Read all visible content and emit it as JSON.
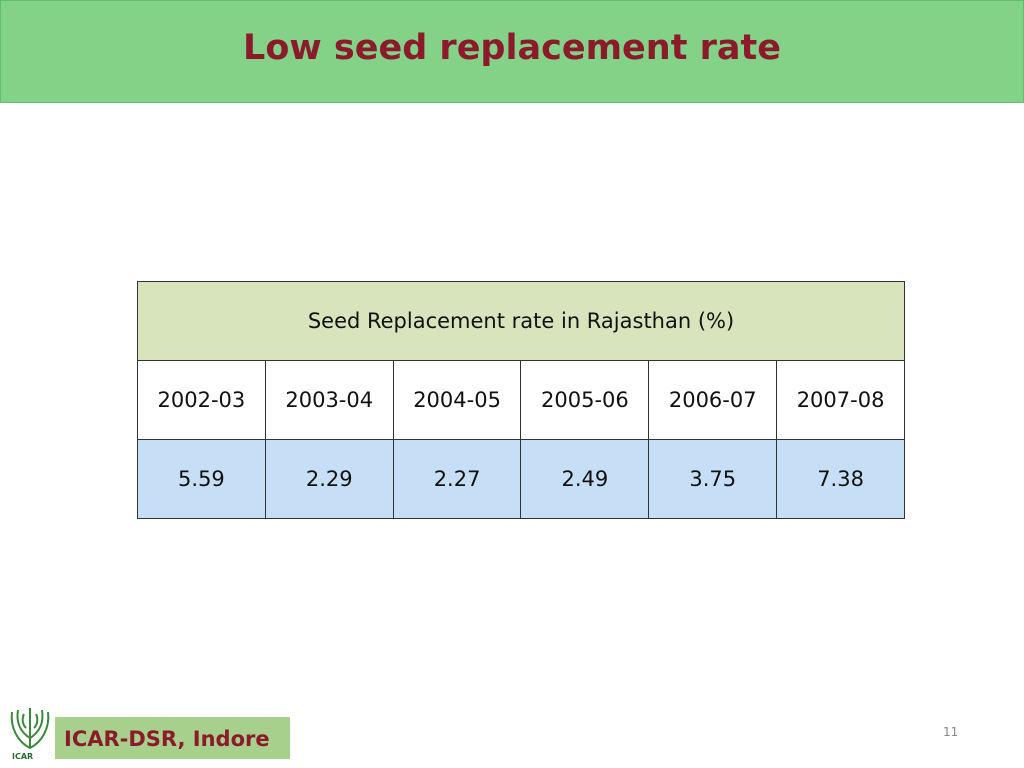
{
  "header": {
    "title": "Low seed replacement rate"
  },
  "table": {
    "caption": "Seed Replacement rate in Rajasthan (%)",
    "columns": [
      "2002-03",
      "2003-04",
      "2004-05",
      "2005-06",
      "2006-07",
      "2007-08"
    ],
    "rows": [
      [
        5.59,
        2.29,
        2.27,
        2.49,
        3.75,
        7.38
      ]
    ]
  },
  "footer": {
    "logo_text": "ICAR",
    "organization": "ICAR-DSR, Indore",
    "page_number": "11"
  }
}
